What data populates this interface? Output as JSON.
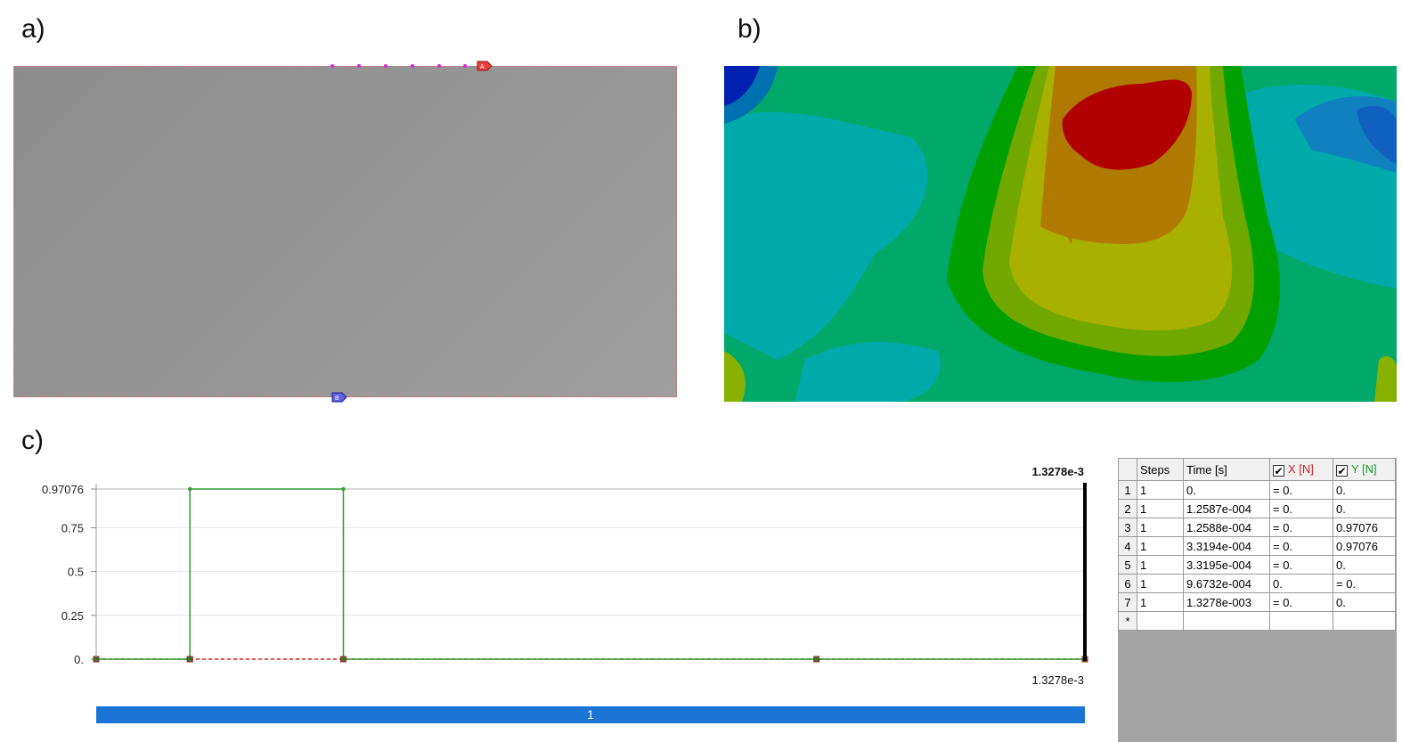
{
  "labels": {
    "a": "a)",
    "b": "b)",
    "c": "c)"
  },
  "panel_a": {
    "marker_a": "A",
    "marker_b": "B"
  },
  "chart_data": {
    "type": "line",
    "title": "",
    "xlabel": "",
    "ylabel": "",
    "xlim": [
      0,
      0.0013278
    ],
    "ylim": [
      0,
      0.97076
    ],
    "yticks": [
      "0.97076",
      "0.75",
      "0.5",
      "0.25",
      "0."
    ],
    "ytick_values": [
      0.97076,
      0.75,
      0.5,
      0.25,
      0
    ],
    "end_time_top": "1.3278e-3",
    "end_time_bottom": "1.3278e-3",
    "series": [
      {
        "color": "#2e9a2e",
        "x": [
          0,
          0.00012587,
          0.00012588,
          0.00033194,
          0.00033195,
          0.00096732,
          0.0013278
        ],
        "y": [
          0,
          0,
          0.97076,
          0.97076,
          0,
          0,
          0
        ]
      },
      {
        "color": "#d02020",
        "x": [
          0,
          0.00012587,
          0.00012588,
          0.00033194,
          0.00033195,
          0.00096732,
          0.0013278
        ],
        "y": [
          0,
          0,
          0,
          0,
          0,
          0,
          0
        ]
      }
    ]
  },
  "step_bar": {
    "label": "1",
    "color": "#1a74d6"
  },
  "table": {
    "headers": {
      "steps": "Steps",
      "time": "Time [s]",
      "x": "X [N]",
      "y": "Y [N]",
      "check": "✔"
    },
    "rows": [
      {
        "n": "1",
        "step": "1",
        "time": "0.",
        "x": "= 0.",
        "y": "0."
      },
      {
        "n": "2",
        "step": "1",
        "time": "1.2587e-004",
        "x": "= 0.",
        "y": "0."
      },
      {
        "n": "3",
        "step": "1",
        "time": "1.2588e-004",
        "x": "= 0.",
        "y": "0.97076"
      },
      {
        "n": "4",
        "step": "1",
        "time": "3.3194e-004",
        "x": "= 0.",
        "y": "0.97076"
      },
      {
        "n": "5",
        "step": "1",
        "time": "3.3195e-004",
        "x": "= 0.",
        "y": "0."
      },
      {
        "n": "6",
        "step": "1",
        "time": "9.6732e-004",
        "x": "0.",
        "y": "= 0."
      },
      {
        "n": "7",
        "step": "1",
        "time": "1.3278e-003",
        "x": "= 0.",
        "y": "0."
      },
      {
        "n": "*",
        "step": "",
        "time": "",
        "x": "",
        "y": ""
      }
    ]
  }
}
